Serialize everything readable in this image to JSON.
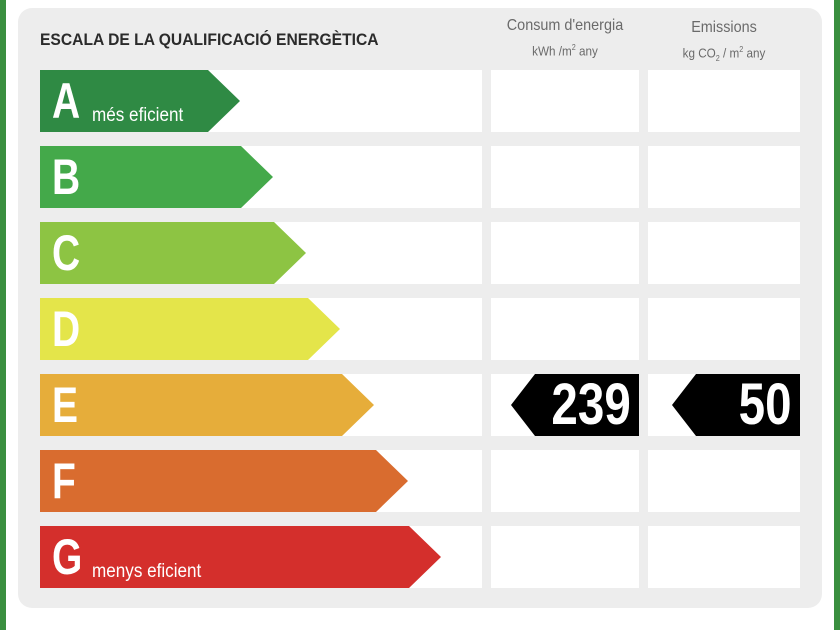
{
  "title": "ESCALA DE LA QUALIFICACIÓ ENERGÈTICA",
  "columns": {
    "consumption": {
      "heading": "Consum d'energia",
      "unit_prefix": "kWh /m",
      "unit_exp": "2",
      "unit_suffix": " any"
    },
    "emissions": {
      "heading": "Emissions",
      "unit_prefix": "kg CO",
      "unit_sub": "2",
      "unit_mid": " / m",
      "unit_exp": "2",
      "unit_suffix": "  any"
    }
  },
  "ratings": [
    {
      "letter": "A",
      "label": "més eficient",
      "color": "#2f8a44"
    },
    {
      "letter": "B",
      "label": "",
      "color": "#44a94a"
    },
    {
      "letter": "C",
      "label": "",
      "color": "#8dc443"
    },
    {
      "letter": "D",
      "label": "",
      "color": "#e4e54a"
    },
    {
      "letter": "E",
      "label": "",
      "color": "#e6ad3a"
    },
    {
      "letter": "F",
      "label": "",
      "color": "#d96c2f"
    },
    {
      "letter": "G",
      "label": "menys eficient",
      "color": "#d42f2c"
    }
  ],
  "current": {
    "rating": "E",
    "consumption": "239",
    "emissions": "50"
  }
}
